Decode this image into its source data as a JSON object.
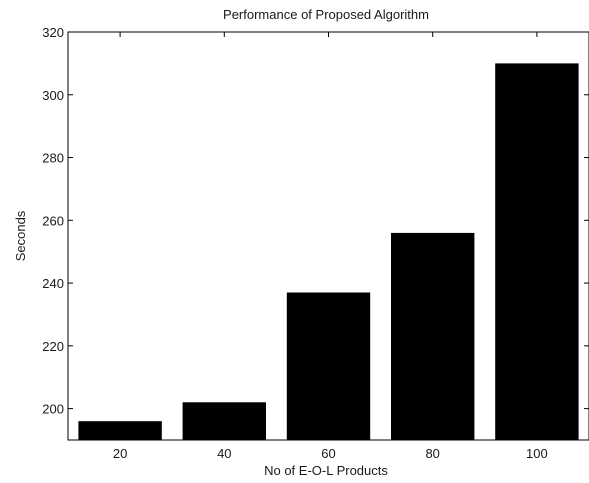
{
  "chart_data": {
    "type": "bar",
    "title": "Performance of Proposed Algorithm",
    "xlabel": "No of E-O-L Products",
    "ylabel": "Seconds",
    "categories": [
      "20",
      "40",
      "60",
      "80",
      "100"
    ],
    "values": [
      196,
      202,
      237,
      256,
      310
    ],
    "ylim": [
      190,
      320
    ],
    "yticks": [
      200,
      220,
      240,
      260,
      280,
      300,
      320
    ],
    "grid": false,
    "bar_color": "#000000"
  }
}
